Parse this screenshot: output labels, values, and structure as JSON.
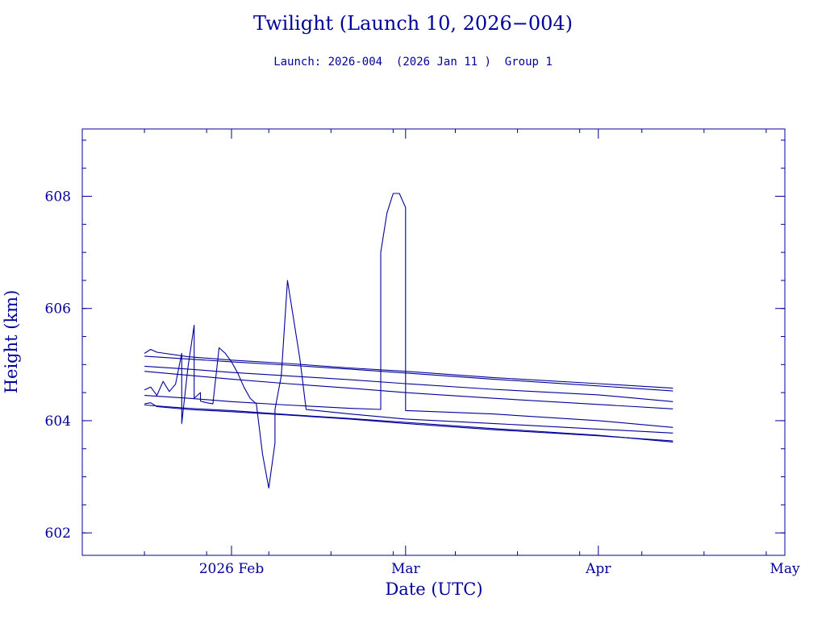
{
  "chart_data": {
    "type": "line",
    "title": "Twilight (Launch 10, 2026−004)",
    "subtitle": "Launch: 2026-004  (2026 Jan 11 )  Group 1",
    "xlabel": "Date (UTC)",
    "ylabel": "Height (km)",
    "x_is_date": true,
    "xlim": [
      "2026-01-08",
      "2026-05-01"
    ],
    "ylim": [
      601.6,
      609.2
    ],
    "x_ticks": [
      {
        "date": "2026-02-01",
        "label": "2026 Feb"
      },
      {
        "date": "2026-03-01",
        "label": "Mar"
      },
      {
        "date": "2026-04-01",
        "label": "Apr"
      },
      {
        "date": "2026-05-01",
        "label": "May"
      }
    ],
    "y_ticks": [
      {
        "value": 602,
        "label": "602"
      },
      {
        "value": 604,
        "label": "604"
      },
      {
        "value": 606,
        "label": "606"
      },
      {
        "value": 608,
        "label": "608"
      }
    ],
    "grid": false,
    "line_color": "#00009a",
    "series": [
      {
        "x": [
          "2026-01-18",
          "2026-01-19",
          "2026-01-20",
          "2026-01-25",
          "2026-02-01",
          "2026-02-10",
          "2026-02-20",
          "2026-03-01",
          "2026-03-15",
          "2026-04-01",
          "2026-04-13"
        ],
        "y": [
          605.2,
          605.27,
          605.22,
          605.14,
          605.08,
          605.02,
          604.94,
          604.88,
          604.77,
          604.66,
          604.58
        ]
      },
      {
        "x": [
          "2026-01-18",
          "2026-01-25",
          "2026-02-01",
          "2026-02-10",
          "2026-02-20",
          "2026-03-01",
          "2026-03-15",
          "2026-04-01",
          "2026-04-13"
        ],
        "y": [
          605.15,
          605.1,
          605.05,
          604.99,
          604.92,
          604.85,
          604.74,
          604.62,
          604.53
        ]
      },
      {
        "x": [
          "2026-01-18",
          "2026-01-25",
          "2026-02-01",
          "2026-02-10",
          "2026-02-20",
          "2026-03-01",
          "2026-03-15",
          "2026-04-01",
          "2026-04-13"
        ],
        "y": [
          604.97,
          604.92,
          604.86,
          604.8,
          604.73,
          604.66,
          604.56,
          604.46,
          604.34
        ]
      },
      {
        "x": [
          "2026-01-18",
          "2026-01-25",
          "2026-02-01",
          "2026-02-10",
          "2026-02-20",
          "2026-03-01",
          "2026-03-15",
          "2026-04-01",
          "2026-04-13"
        ],
        "y": [
          604.88,
          604.81,
          604.74,
          604.66,
          604.58,
          604.5,
          604.4,
          604.29,
          604.21
        ]
      },
      {
        "x": [
          "2026-01-18",
          "2026-01-19",
          "2026-01-20",
          "2026-01-21",
          "2026-01-22",
          "2026-01-23",
          "2026-01-24",
          "2026-01-24",
          "2026-01-25",
          "2026-01-26",
          "2026-01-26",
          "2026-01-27",
          "2026-01-27",
          "2026-01-28",
          "2026-01-29",
          "2026-01-30",
          "2026-01-31",
          "2026-02-01",
          "2026-02-02",
          "2026-02-03",
          "2026-02-04",
          "2026-02-05",
          "2026-02-06",
          "2026-02-07",
          "2026-02-08",
          "2026-02-08",
          "2026-02-09",
          "2026-02-10",
          "2026-02-11",
          "2026-02-12",
          "2026-02-13",
          "2026-02-20",
          "2026-03-01",
          "2026-03-15",
          "2026-04-01",
          "2026-04-13"
        ],
        "y": [
          604.55,
          604.6,
          604.45,
          604.7,
          604.52,
          604.65,
          605.2,
          603.95,
          604.95,
          605.7,
          604.4,
          604.5,
          604.35,
          604.32,
          604.3,
          605.3,
          605.2,
          605.05,
          604.85,
          604.6,
          604.4,
          604.3,
          603.4,
          602.8,
          603.6,
          604.2,
          604.8,
          606.5,
          605.8,
          605.1,
          604.2,
          604.12,
          604.03,
          603.95,
          603.85,
          603.78
        ]
      },
      {
        "x": [
          "2026-01-18",
          "2026-01-25",
          "2026-02-01",
          "2026-02-10",
          "2026-02-20",
          "2026-02-25",
          "2026-02-25",
          "2026-02-26",
          "2026-02-27",
          "2026-02-28",
          "2026-03-01",
          "2026-03-01",
          "2026-03-15",
          "2026-04-01",
          "2026-04-13"
        ],
        "y": [
          604.45,
          604.4,
          604.34,
          604.28,
          604.22,
          604.2,
          607.0,
          607.7,
          608.05,
          608.05,
          607.8,
          604.18,
          604.12,
          604.0,
          603.88
        ]
      },
      {
        "x": [
          "2026-01-18",
          "2026-01-19",
          "2026-01-20",
          "2026-01-25",
          "2026-02-01",
          "2026-02-10",
          "2026-02-20",
          "2026-03-01",
          "2026-03-15",
          "2026-04-01",
          "2026-04-13"
        ],
        "y": [
          604.3,
          604.32,
          604.25,
          604.2,
          604.16,
          604.1,
          604.03,
          603.95,
          603.84,
          603.73,
          603.64
        ]
      },
      {
        "x": [
          "2026-01-18",
          "2026-01-25",
          "2026-02-01",
          "2026-02-10",
          "2026-02-20",
          "2026-03-01",
          "2026-03-15",
          "2026-04-01",
          "2026-04-13"
        ],
        "y": [
          604.28,
          604.22,
          604.18,
          604.11,
          604.04,
          603.97,
          603.86,
          603.74,
          603.62
        ]
      }
    ]
  }
}
